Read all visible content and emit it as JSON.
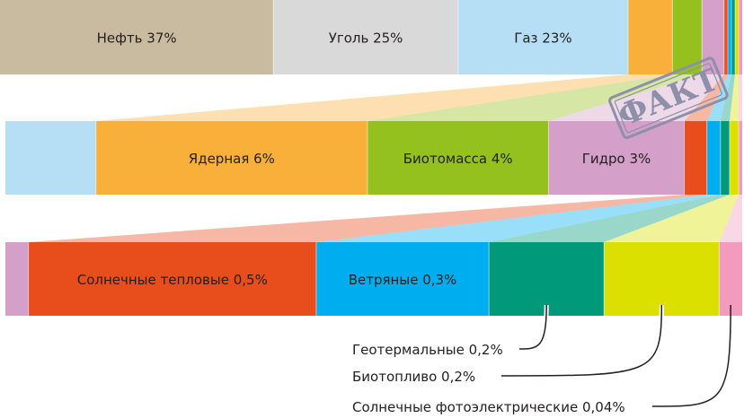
{
  "chart_data": {
    "type": "bar",
    "rows": [
      {
        "segments": [
          {
            "label": "Нефть 37%",
            "value": 37,
            "color": "#c9bba0"
          },
          {
            "label": "Уголь 25%",
            "value": 25,
            "color": "#d9d9d9"
          },
          {
            "label": "Газ 23%",
            "value": 23,
            "color": "#b6dff5"
          },
          {
            "label": "",
            "value": 6,
            "color": "#f9b03b"
          },
          {
            "label": "",
            "value": 4,
            "color": "#95c11f"
          },
          {
            "label": "",
            "value": 3,
            "color": "#d49fc9"
          },
          {
            "label": "",
            "value": 0.5,
            "color": "#e84e1b"
          },
          {
            "label": "",
            "value": 0.3,
            "color": "#00aeef"
          },
          {
            "label": "",
            "value": 0.2,
            "color": "#009a7a"
          },
          {
            "label": "",
            "value": 0.2,
            "color": "#dbe000"
          },
          {
            "label": "",
            "value": 0.04,
            "color": "#f29bbd"
          }
        ]
      },
      {
        "segments": [
          {
            "label": "",
            "value": 2,
            "color": "#b6dff5"
          },
          {
            "label": "Ядерная 6%",
            "value": 6,
            "color": "#f9b03b"
          },
          {
            "label": "Биотомасса 4%",
            "value": 4,
            "color": "#95c11f"
          },
          {
            "label": "Гидро 3%",
            "value": 3,
            "color": "#d49fc9"
          },
          {
            "label": "",
            "value": 0.5,
            "color": "#e84e1b"
          },
          {
            "label": "",
            "value": 0.3,
            "color": "#00aeef"
          },
          {
            "label": "",
            "value": 0.2,
            "color": "#009a7a"
          },
          {
            "label": "",
            "value": 0.2,
            "color": "#dbe000"
          },
          {
            "label": "",
            "value": 0.04,
            "color": "#f29bbd"
          }
        ]
      },
      {
        "segments": [
          {
            "label": "",
            "value": 0.04,
            "color": "#d49fc9"
          },
          {
            "label": "Солнечные тепловые 0,5%",
            "value": 0.5,
            "color": "#e84e1b"
          },
          {
            "label": "Ветряные 0,3%",
            "value": 0.3,
            "color": "#00aeef"
          },
          {
            "label": "",
            "value": 0.2,
            "color": "#009a7a"
          },
          {
            "label": "",
            "value": 0.2,
            "color": "#dbe000"
          },
          {
            "label": "",
            "value": 0.04,
            "color": "#f29bbd"
          }
        ]
      }
    ],
    "callouts": [
      {
        "text": "Геотермальные 0,2%",
        "target": "Геотермальные"
      },
      {
        "text": "Биотопливо 0,2%",
        "target": "Биотопливо"
      },
      {
        "text": "Солнечные фотоэлектрические 0,04%",
        "target": "Солнечные фотоэлектрические"
      }
    ],
    "stamp": "ФАКТ"
  }
}
